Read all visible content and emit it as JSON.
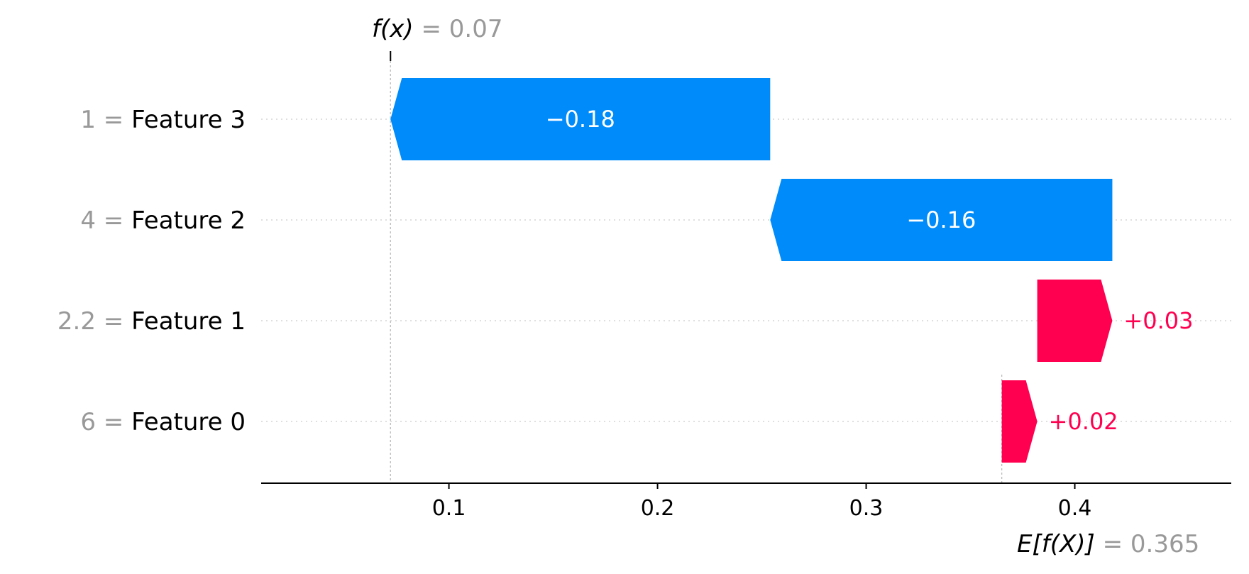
{
  "chart_data": {
    "type": "waterfall",
    "features": [
      {
        "name": "Feature 3",
        "value_label": "1",
        "contribution": -0.18,
        "label": "−0.18"
      },
      {
        "name": "Feature 2",
        "value_label": "4",
        "contribution": -0.16,
        "label": "−0.16"
      },
      {
        "name": "Feature 1",
        "value_label": "2.2",
        "contribution": 0.03,
        "label": "+0.03"
      },
      {
        "name": "Feature 0",
        "value_label": "6",
        "contribution": 0.02,
        "label": "+0.02"
      }
    ],
    "segments": [
      {
        "feature": "Feature 3",
        "start": 0.254,
        "end": 0.072
      },
      {
        "feature": "Feature 2",
        "start": 0.418,
        "end": 0.254
      },
      {
        "feature": "Feature 1",
        "start": 0.382,
        "end": 0.418
      },
      {
        "feature": "Feature 0",
        "start": 0.365,
        "end": 0.382
      }
    ],
    "fx": {
      "label": "f(x)",
      "value_text": "= 0.07",
      "value": 0.072
    },
    "efx": {
      "label": "E[f(X)]",
      "value_text": "= 0.365",
      "value": 0.365
    },
    "xticks": [
      0.1,
      0.2,
      0.3,
      0.4
    ],
    "xtick_labels": [
      "0.1",
      "0.2",
      "0.3",
      "0.4"
    ],
    "xlim": [
      0.01,
      0.475
    ],
    "grid": "dotted horizontal per feature row",
    "colors": {
      "positive": "#ff0051",
      "negative": "#008bfb",
      "reference_line": "#bbbbbb",
      "axis": "#000000"
    }
  }
}
